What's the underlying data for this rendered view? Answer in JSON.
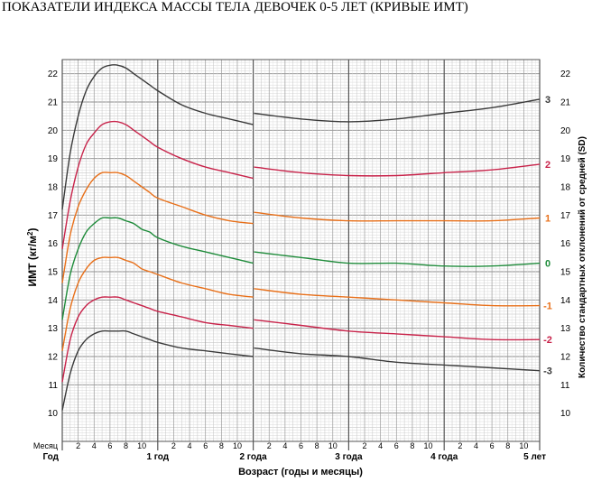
{
  "title": "ПОКАЗАТЕЛИ ИНДЕКСА МАССЫ ТЕЛА ДЕВОЧЕК 0-5 ЛЕТ (КРИВЫЕ ИМТ)",
  "chart_data": {
    "type": "line",
    "title": "ПОКАЗАТЕЛИ ИНДЕКСА МАССЫ ТЕЛА ДЕВОЧЕК 0-5 ЛЕТ (КРИВЫЕ ИМТ)",
    "xlabel": "Возраст (годы и месяцы)",
    "ylabel": "ИМТ (кг/м²)",
    "ylabel_right": "Количество стандартных отклонений от средней (SD)",
    "xlim": [
      0,
      60
    ],
    "ylim": [
      9,
      22.5
    ],
    "grid": true,
    "y_ticks": [
      10,
      11,
      12,
      13,
      14,
      15,
      16,
      17,
      18,
      19,
      20,
      21,
      22
    ],
    "x_month_label": "Месяц",
    "x_month_ticks": [
      "2",
      "4",
      "6",
      "8",
      "10"
    ],
    "x_year_labels": [
      "Год",
      "1 год",
      "2 года",
      "3 года",
      "4 года",
      "5 лет"
    ],
    "series": [
      {
        "name": "3",
        "color": "#3a3a3a",
        "x": [
          0,
          1,
          2,
          3,
          4,
          5,
          6,
          7,
          8,
          9,
          10,
          11,
          12,
          15,
          18,
          21,
          24,
          24.1,
          30,
          36,
          42,
          48,
          54,
          60
        ],
        "values": [
          17.2,
          19.2,
          20.5,
          21.4,
          21.9,
          22.2,
          22.3,
          22.3,
          22.2,
          22.0,
          21.8,
          21.6,
          21.4,
          20.9,
          20.6,
          20.4,
          20.2,
          20.6,
          20.4,
          20.3,
          20.4,
          20.6,
          20.8,
          21.1
        ]
      },
      {
        "name": "2",
        "color": "#c8234a",
        "x": [
          0,
          1,
          2,
          3,
          4,
          5,
          6,
          7,
          8,
          9,
          10,
          11,
          12,
          15,
          18,
          21,
          24,
          24.1,
          30,
          36,
          42,
          48,
          54,
          60
        ],
        "values": [
          15.8,
          17.5,
          18.7,
          19.5,
          19.9,
          20.2,
          20.3,
          20.3,
          20.2,
          20.0,
          19.8,
          19.6,
          19.4,
          19.0,
          18.7,
          18.5,
          18.3,
          18.7,
          18.5,
          18.4,
          18.4,
          18.5,
          18.6,
          18.8
        ]
      },
      {
        "name": "1",
        "color": "#e8701a",
        "x": [
          0,
          1,
          2,
          3,
          4,
          5,
          6,
          7,
          8,
          9,
          10,
          11,
          12,
          15,
          18,
          21,
          24,
          24.1,
          30,
          36,
          42,
          48,
          54,
          60
        ],
        "values": [
          14.6,
          16.3,
          17.3,
          17.9,
          18.3,
          18.5,
          18.5,
          18.5,
          18.4,
          18.2,
          18.0,
          17.8,
          17.6,
          17.3,
          17.0,
          16.8,
          16.7,
          17.1,
          16.9,
          16.8,
          16.8,
          16.8,
          16.8,
          16.9
        ]
      },
      {
        "name": "0",
        "color": "#1e8b3a",
        "x": [
          0,
          1,
          2,
          3,
          4,
          5,
          6,
          7,
          8,
          9,
          10,
          11,
          12,
          15,
          18,
          21,
          24,
          24.1,
          30,
          36,
          42,
          48,
          54,
          60
        ],
        "values": [
          13.3,
          14.9,
          15.8,
          16.4,
          16.7,
          16.9,
          16.9,
          16.9,
          16.8,
          16.7,
          16.5,
          16.4,
          16.2,
          15.9,
          15.7,
          15.5,
          15.3,
          15.7,
          15.5,
          15.3,
          15.3,
          15.2,
          15.2,
          15.3
        ]
      },
      {
        "name": "-1",
        "color": "#e8701a",
        "x": [
          0,
          1,
          2,
          3,
          4,
          5,
          6,
          7,
          8,
          9,
          10,
          11,
          12,
          15,
          18,
          21,
          24,
          24.1,
          30,
          36,
          42,
          48,
          54,
          60
        ],
        "values": [
          12.2,
          13.7,
          14.6,
          15.1,
          15.4,
          15.5,
          15.5,
          15.5,
          15.4,
          15.3,
          15.1,
          15.0,
          14.9,
          14.6,
          14.4,
          14.2,
          14.1,
          14.4,
          14.2,
          14.1,
          14.0,
          13.9,
          13.8,
          13.8
        ]
      },
      {
        "name": "-2",
        "color": "#c8234a",
        "x": [
          0,
          1,
          2,
          3,
          4,
          5,
          6,
          7,
          8,
          9,
          10,
          11,
          12,
          15,
          18,
          21,
          24,
          24.1,
          30,
          36,
          42,
          48,
          54,
          60
        ],
        "values": [
          11.1,
          12.6,
          13.4,
          13.8,
          14.0,
          14.1,
          14.1,
          14.1,
          14.0,
          13.9,
          13.8,
          13.7,
          13.6,
          13.4,
          13.2,
          13.1,
          13.0,
          13.3,
          13.1,
          12.9,
          12.8,
          12.7,
          12.6,
          12.6
        ]
      },
      {
        "name": "-3",
        "color": "#3a3a3a",
        "x": [
          0,
          1,
          2,
          3,
          4,
          5,
          6,
          7,
          8,
          9,
          10,
          11,
          12,
          15,
          18,
          21,
          24,
          24.1,
          30,
          36,
          42,
          48,
          54,
          60
        ],
        "values": [
          10.1,
          11.4,
          12.2,
          12.6,
          12.8,
          12.9,
          12.9,
          12.9,
          12.9,
          12.8,
          12.7,
          12.6,
          12.5,
          12.3,
          12.2,
          12.1,
          12.0,
          12.3,
          12.1,
          12.0,
          11.8,
          11.7,
          11.6,
          11.5
        ]
      }
    ]
  }
}
